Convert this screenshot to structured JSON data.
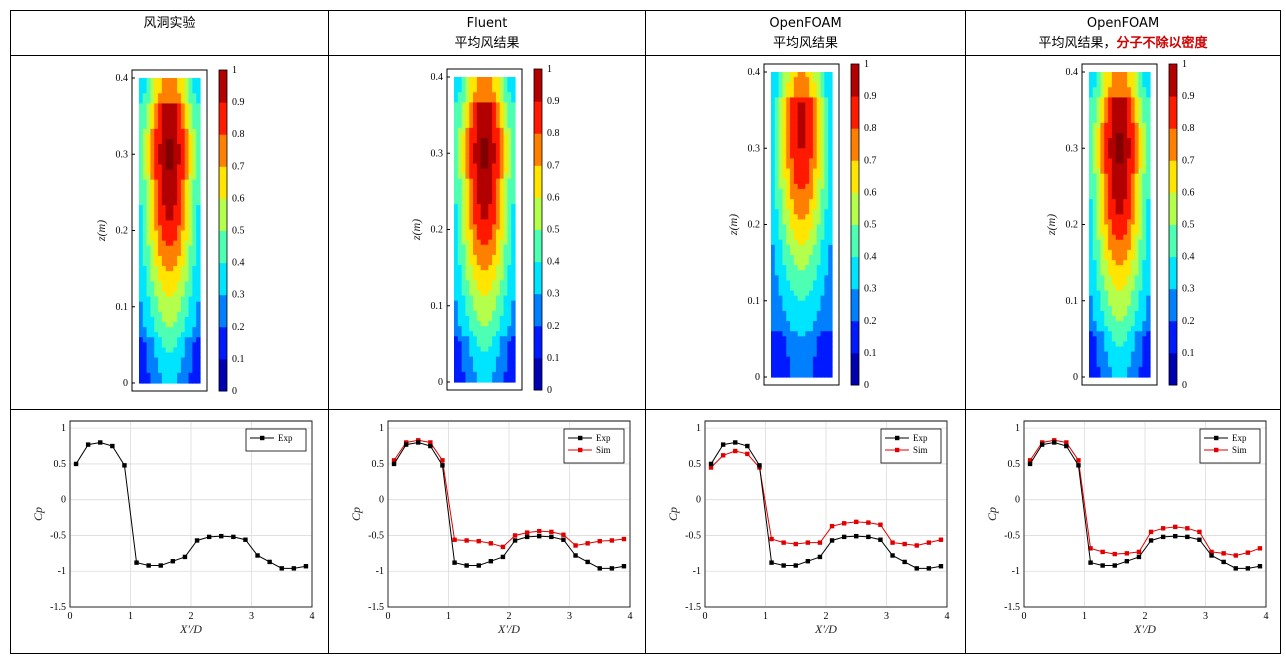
{
  "columns": [
    {
      "line1": "风洞实验",
      "line2": "",
      "line2_red": ""
    },
    {
      "line1": "Fluent",
      "line2": "平均风结果",
      "line2_red": ""
    },
    {
      "line1": "OpenFOAM",
      "line2": "平均风结果",
      "line2_red": ""
    },
    {
      "line1": "OpenFOAM",
      "line2": "平均风结果，",
      "line2_red": "分子不除以密度"
    }
  ],
  "colors": {
    "exp": "#000000",
    "sim": "#e00000"
  },
  "contour": {
    "ylabel": "z(m)",
    "yticks": [
      "0",
      "0.1",
      "0.2",
      "0.3",
      "0.4"
    ],
    "colorbar_ticks": [
      "0",
      "0.1",
      "0.2",
      "0.3",
      "0.4",
      "0.5",
      "0.6",
      "0.7",
      "0.8",
      "0.9",
      "1"
    ],
    "colormap": "jet"
  },
  "chart_data": [
    {
      "type": "line",
      "xlabel": "X'/D",
      "ylabel": "Cp",
      "xlim": [
        0,
        4
      ],
      "ylim": [
        -1.5,
        1.1
      ],
      "xticks": [
        "0",
        "1",
        "2",
        "3",
        "4"
      ],
      "yticks": [
        "1",
        "0.5",
        "0",
        "-0.5",
        "-1",
        "-1.5"
      ],
      "legend_position": "top-right",
      "grid": true,
      "x": [
        0.1,
        0.3,
        0.5,
        0.7,
        0.9,
        1.1,
        1.3,
        1.5,
        1.7,
        1.9,
        2.1,
        2.3,
        2.5,
        2.7,
        2.9,
        3.1,
        3.3,
        3.5,
        3.7,
        3.9
      ],
      "series": [
        {
          "name": "Exp",
          "values": [
            0.5,
            0.77,
            0.8,
            0.75,
            0.48,
            -0.88,
            -0.92,
            -0.92,
            -0.86,
            -0.8,
            -0.57,
            -0.52,
            -0.51,
            -0.52,
            -0.56,
            -0.78,
            -0.87,
            -0.96,
            -0.96,
            -0.93
          ]
        }
      ]
    },
    {
      "type": "line",
      "xlabel": "X'/D",
      "ylabel": "Cp",
      "xlim": [
        0,
        4
      ],
      "ylim": [
        -1.5,
        1.1
      ],
      "xticks": [
        "0",
        "1",
        "2",
        "3",
        "4"
      ],
      "yticks": [
        "1",
        "0.5",
        "0",
        "-0.5",
        "-1",
        "-1.5"
      ],
      "legend_position": "top-right",
      "grid": true,
      "x": [
        0.1,
        0.3,
        0.5,
        0.7,
        0.9,
        1.1,
        1.3,
        1.5,
        1.7,
        1.9,
        2.1,
        2.3,
        2.5,
        2.7,
        2.9,
        3.1,
        3.3,
        3.5,
        3.7,
        3.9
      ],
      "series": [
        {
          "name": "Exp",
          "values": [
            0.5,
            0.77,
            0.8,
            0.75,
            0.48,
            -0.88,
            -0.92,
            -0.92,
            -0.86,
            -0.8,
            -0.57,
            -0.52,
            -0.51,
            -0.52,
            -0.56,
            -0.78,
            -0.87,
            -0.96,
            -0.96,
            -0.93
          ]
        },
        {
          "name": "Sim",
          "values": [
            0.55,
            0.8,
            0.83,
            0.8,
            0.55,
            -0.56,
            -0.57,
            -0.58,
            -0.61,
            -0.66,
            -0.5,
            -0.46,
            -0.44,
            -0.45,
            -0.49,
            -0.64,
            -0.61,
            -0.58,
            -0.57,
            -0.55
          ]
        }
      ]
    },
    {
      "type": "line",
      "xlabel": "X'/D",
      "ylabel": "Cp",
      "xlim": [
        0,
        4
      ],
      "ylim": [
        -1.5,
        1.1
      ],
      "xticks": [
        "0",
        "1",
        "2",
        "3",
        "4"
      ],
      "yticks": [
        "1",
        "0.5",
        "0",
        "-0.5",
        "-1",
        "-1.5"
      ],
      "legend_position": "top-right",
      "grid": true,
      "x": [
        0.1,
        0.3,
        0.5,
        0.7,
        0.9,
        1.1,
        1.3,
        1.5,
        1.7,
        1.9,
        2.1,
        2.3,
        2.5,
        2.7,
        2.9,
        3.1,
        3.3,
        3.5,
        3.7,
        3.9
      ],
      "series": [
        {
          "name": "Exp",
          "values": [
            0.5,
            0.77,
            0.8,
            0.75,
            0.48,
            -0.88,
            -0.92,
            -0.92,
            -0.86,
            -0.8,
            -0.57,
            -0.52,
            -0.51,
            -0.52,
            -0.56,
            -0.78,
            -0.87,
            -0.96,
            -0.96,
            -0.93
          ]
        },
        {
          "name": "Sim",
          "values": [
            0.45,
            0.62,
            0.68,
            0.64,
            0.45,
            -0.55,
            -0.6,
            -0.62,
            -0.6,
            -0.6,
            -0.37,
            -0.33,
            -0.31,
            -0.32,
            -0.35,
            -0.6,
            -0.62,
            -0.64,
            -0.6,
            -0.56
          ]
        }
      ]
    },
    {
      "type": "line",
      "xlabel": "X'/D",
      "ylabel": "Cp",
      "xlim": [
        0,
        4
      ],
      "ylim": [
        -1.5,
        1.1
      ],
      "xticks": [
        "0",
        "1",
        "2",
        "3",
        "4"
      ],
      "yticks": [
        "1",
        "0.5",
        "0",
        "-0.5",
        "-1",
        "-1.5"
      ],
      "legend_position": "top-right",
      "grid": true,
      "x": [
        0.1,
        0.3,
        0.5,
        0.7,
        0.9,
        1.1,
        1.3,
        1.5,
        1.7,
        1.9,
        2.1,
        2.3,
        2.5,
        2.7,
        2.9,
        3.1,
        3.3,
        3.5,
        3.7,
        3.9
      ],
      "series": [
        {
          "name": "Exp",
          "values": [
            0.5,
            0.77,
            0.8,
            0.75,
            0.48,
            -0.88,
            -0.92,
            -0.92,
            -0.86,
            -0.8,
            -0.57,
            -0.52,
            -0.51,
            -0.52,
            -0.56,
            -0.78,
            -0.87,
            -0.96,
            -0.96,
            -0.93
          ]
        },
        {
          "name": "Sim",
          "values": [
            0.55,
            0.8,
            0.83,
            0.8,
            0.55,
            -0.68,
            -0.73,
            -0.76,
            -0.75,
            -0.73,
            -0.45,
            -0.4,
            -0.38,
            -0.4,
            -0.45,
            -0.73,
            -0.75,
            -0.78,
            -0.74,
            -0.68
          ]
        }
      ]
    }
  ]
}
